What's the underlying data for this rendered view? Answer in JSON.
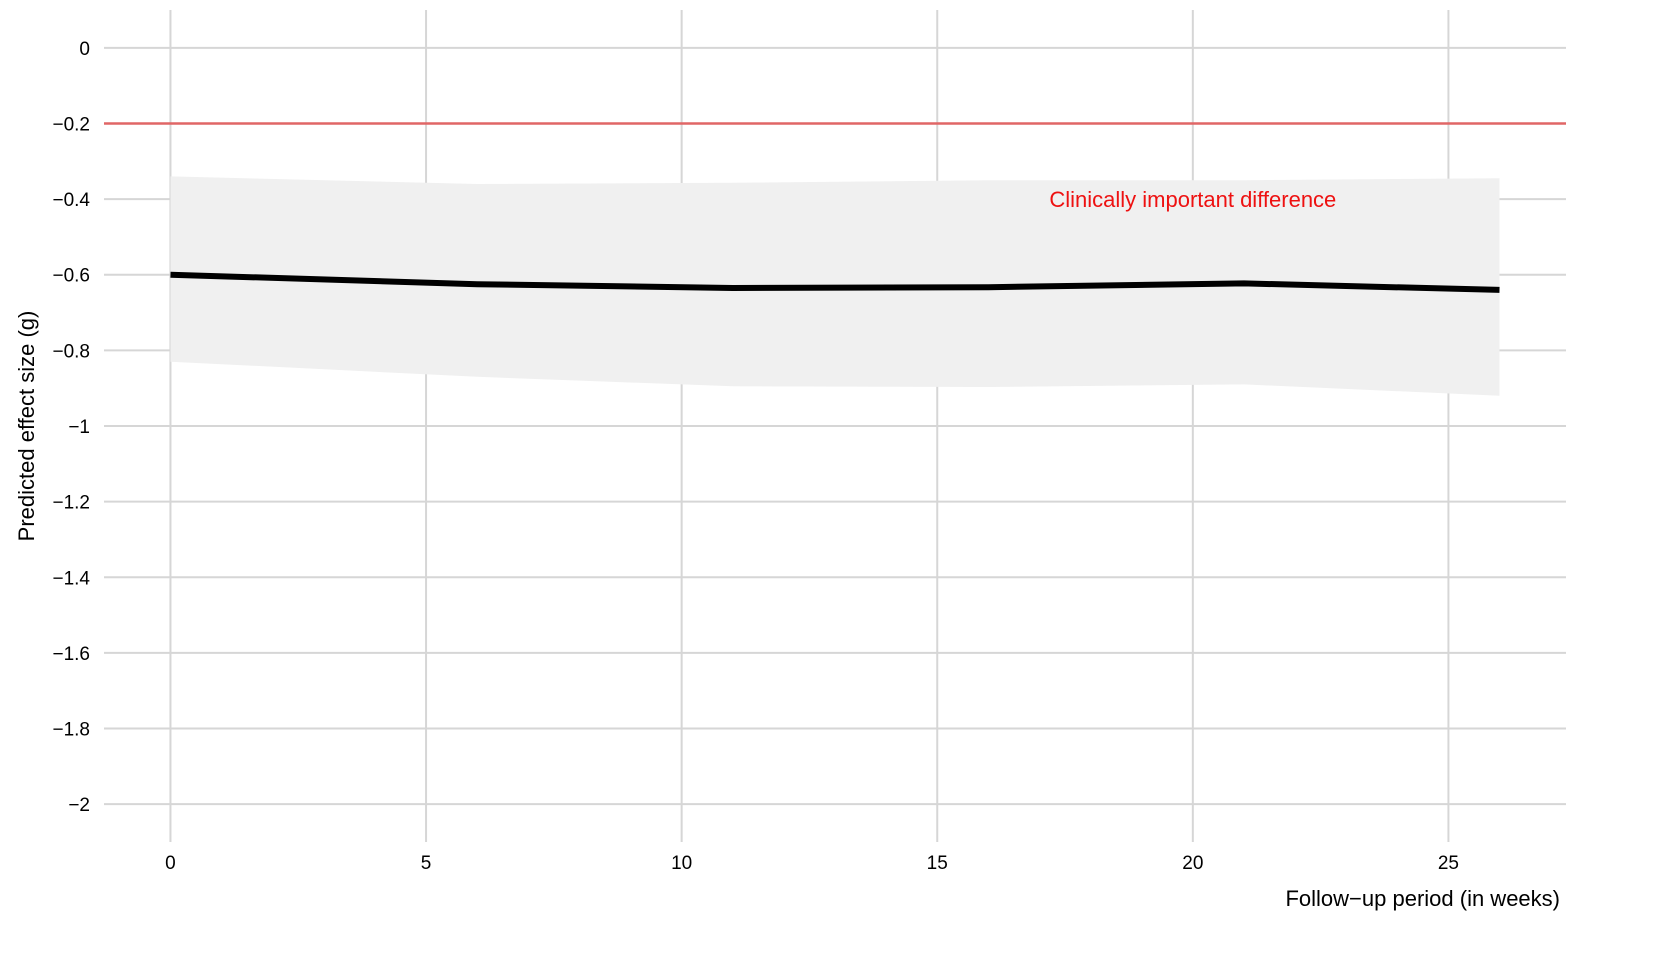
{
  "chart_data": {
    "type": "line",
    "title": "",
    "xlabel": "Follow−up period (in weeks)",
    "ylabel": "Predicted effect size (g)",
    "xlim": [
      -1.3,
      27.3
    ],
    "ylim": [
      -2.1,
      0.1
    ],
    "x_ticks": [
      0,
      5,
      10,
      15,
      20,
      25
    ],
    "x_tick_labels": [
      "0",
      "5",
      "10",
      "15",
      "20",
      "25"
    ],
    "y_ticks": [
      0,
      -0.2,
      -0.4,
      -0.6,
      -0.8,
      -1,
      -1.2,
      -1.4,
      -1.6,
      -1.8,
      -2
    ],
    "y_tick_labels": [
      "0",
      "−0.2",
      "−0.4",
      "−0.6",
      "−0.8",
      "−1",
      "−1.2",
      "−1.4",
      "−1.6",
      "−1.8",
      "−2"
    ],
    "grid": true,
    "series": [
      {
        "x": [
          0,
          6,
          11,
          16,
          21,
          26
        ],
        "y": [
          -0.6,
          -0.625,
          -0.635,
          -0.633,
          -0.623,
          -0.64
        ],
        "lower": [
          -0.83,
          -0.87,
          -0.895,
          -0.897,
          -0.89,
          -0.92
        ],
        "upper": [
          -0.34,
          -0.36,
          -0.357,
          -0.35,
          -0.35,
          -0.345
        ],
        "color": "#000000",
        "band_color": "#f0f0f0"
      }
    ],
    "reference_line": {
      "y": -0.2,
      "color": "#e06666",
      "label": "Clinically important difference",
      "label_color": "#ee1111",
      "label_x": 20,
      "label_y": -0.4
    },
    "gridline_color": "#d6d6d6"
  }
}
